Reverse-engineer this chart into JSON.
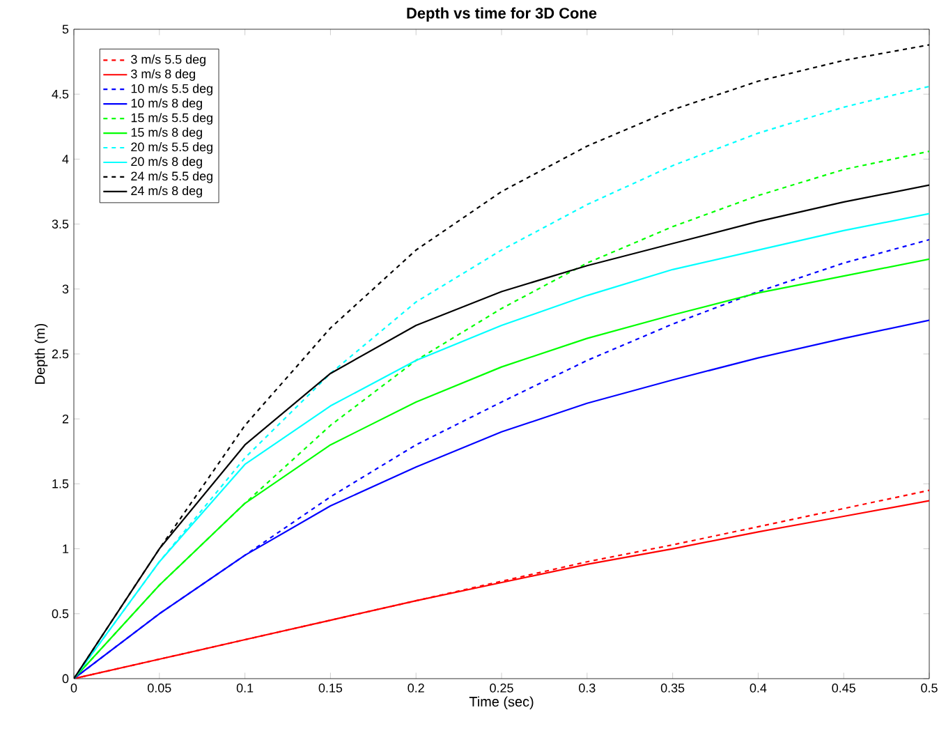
{
  "chart_data": {
    "type": "line",
    "title": "Depth vs time for 3D Cone",
    "xlabel": "Time (sec)",
    "ylabel": "Depth (m)",
    "x": [
      0,
      0.05,
      0.1,
      0.15,
      0.2,
      0.25,
      0.3,
      0.35,
      0.4,
      0.45,
      0.5
    ],
    "xlim": [
      0,
      0.5
    ],
    "ylim": [
      0,
      5
    ],
    "xticks": [
      0,
      0.05,
      0.1,
      0.15,
      0.2,
      0.25,
      0.3,
      0.35,
      0.4,
      0.45,
      0.5
    ],
    "yticks": [
      0,
      0.5,
      1,
      1.5,
      2,
      2.5,
      3,
      3.5,
      4,
      4.5,
      5
    ],
    "legend": "top left",
    "grid": false,
    "series": [
      {
        "name": "3 m/s 5.5 deg",
        "color": "#ff0000",
        "line_style": "dashed",
        "values": [
          0,
          0.15,
          0.3,
          0.45,
          0.6,
          0.75,
          0.9,
          1.03,
          1.17,
          1.31,
          1.45
        ]
      },
      {
        "name": "3 m/s 8 deg",
        "color": "#ff0000",
        "line_style": "solid",
        "values": [
          0,
          0.15,
          0.3,
          0.45,
          0.6,
          0.74,
          0.88,
          1.0,
          1.13,
          1.25,
          1.37
        ]
      },
      {
        "name": "10 m/s 5.5 deg",
        "color": "#0000ff",
        "line_style": "dashed",
        "values": [
          0,
          0.5,
          0.95,
          1.4,
          1.8,
          2.13,
          2.45,
          2.73,
          2.98,
          3.2,
          3.38
        ]
      },
      {
        "name": "10 m/s 8 deg",
        "color": "#0000ff",
        "line_style": "solid",
        "values": [
          0,
          0.5,
          0.95,
          1.33,
          1.63,
          1.9,
          2.12,
          2.3,
          2.47,
          2.62,
          2.76
        ]
      },
      {
        "name": "15 m/s 5.5 deg",
        "color": "#00ff00",
        "line_style": "dashed",
        "values": [
          0,
          0.72,
          1.35,
          1.95,
          2.45,
          2.85,
          3.2,
          3.48,
          3.72,
          3.92,
          4.06
        ]
      },
      {
        "name": "15 m/s 8 deg",
        "color": "#00ff00",
        "line_style": "solid",
        "values": [
          0,
          0.72,
          1.35,
          1.8,
          2.13,
          2.4,
          2.62,
          2.8,
          2.97,
          3.1,
          3.23
        ]
      },
      {
        "name": "20 m/s 5.5 deg",
        "color": "#00ffff",
        "line_style": "dashed",
        "values": [
          0,
          0.9,
          1.7,
          2.35,
          2.9,
          3.3,
          3.65,
          3.95,
          4.2,
          4.4,
          4.56
        ]
      },
      {
        "name": "20 m/s 8 deg",
        "color": "#00ffff",
        "line_style": "solid",
        "values": [
          0,
          0.9,
          1.65,
          2.1,
          2.45,
          2.72,
          2.95,
          3.15,
          3.3,
          3.45,
          3.58
        ]
      },
      {
        "name": "24 m/s 5.5 deg",
        "color": "#000000",
        "line_style": "dashed",
        "values": [
          0,
          1.0,
          1.95,
          2.7,
          3.3,
          3.75,
          4.1,
          4.38,
          4.6,
          4.76,
          4.88
        ]
      },
      {
        "name": "24 m/s 8 deg",
        "color": "#000000",
        "line_style": "solid",
        "values": [
          0,
          1.0,
          1.8,
          2.35,
          2.72,
          2.98,
          3.18,
          3.35,
          3.52,
          3.67,
          3.8
        ]
      }
    ]
  }
}
